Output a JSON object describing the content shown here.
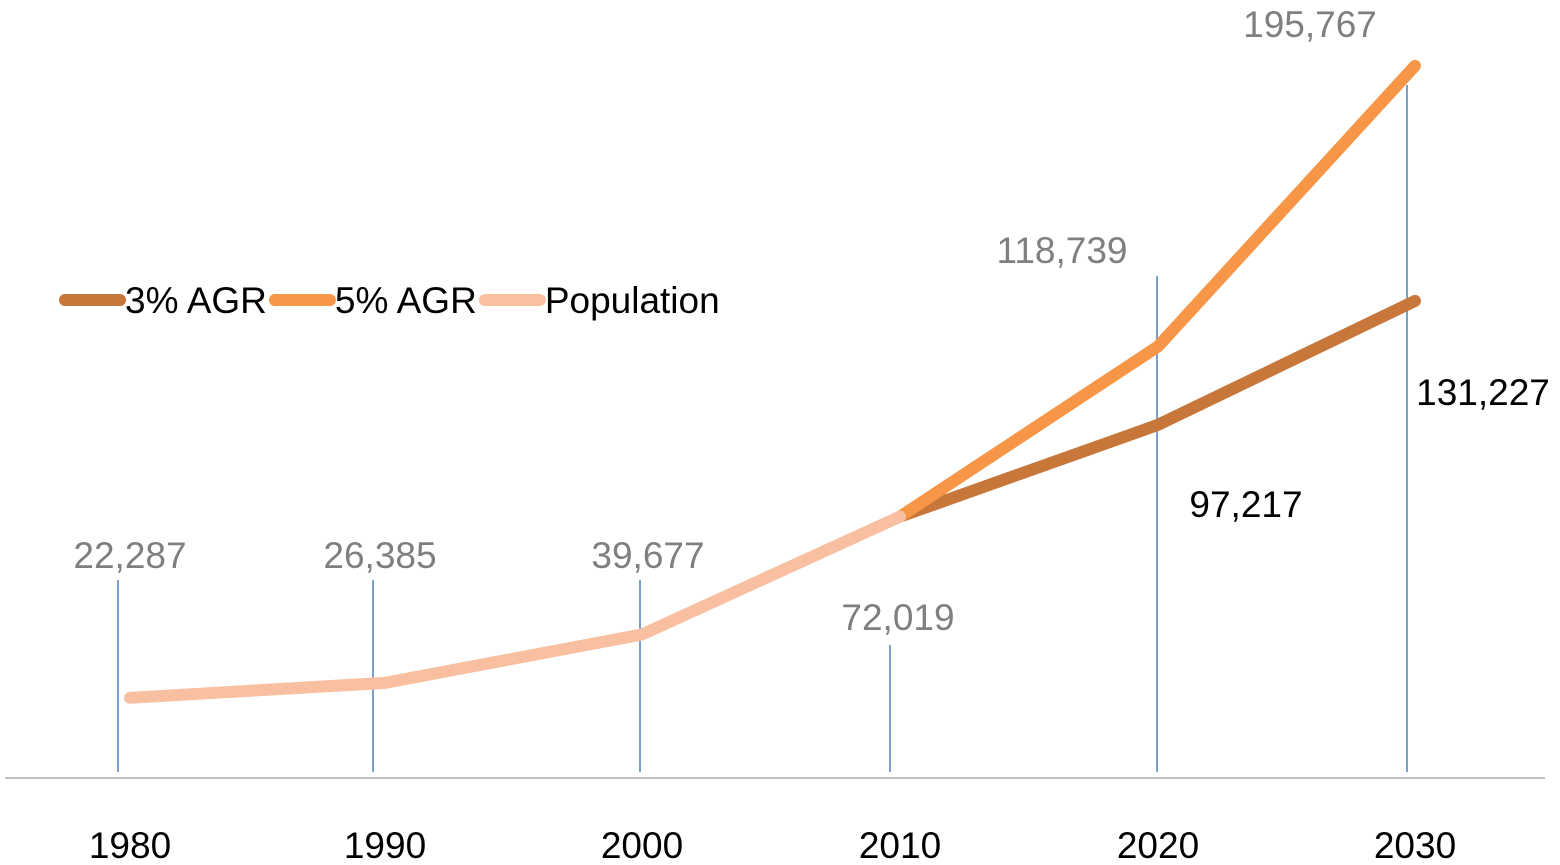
{
  "chart_data": {
    "type": "line",
    "categories": [
      "1980",
      "1990",
      "2000",
      "2010",
      "2020",
      "2030"
    ],
    "ylim": [
      0,
      200000
    ],
    "legend": "left",
    "series": [
      {
        "name": "3% AGR",
        "color": "#c8773a",
        "label_color": "#000000",
        "values": [
          null,
          null,
          null,
          72019,
          97217,
          131227
        ],
        "value_labels": [
          null,
          null,
          null,
          null,
          "97,217",
          "131,227"
        ]
      },
      {
        "name": "5% AGR",
        "color": "#f79646",
        "label_color": "#7f7f7f",
        "values": [
          null,
          null,
          null,
          72019,
          118739,
          195767
        ],
        "value_labels": [
          null,
          null,
          null,
          null,
          "118,739",
          "195,767"
        ]
      },
      {
        "name": "Population",
        "color": "#f8bfa0",
        "label_color": "#7f7f7f",
        "values": [
          22287,
          26385,
          39677,
          72019,
          null,
          null
        ],
        "value_labels": [
          "22,287",
          "26,385",
          "39,677",
          "72,019",
          null,
          null
        ]
      }
    ]
  }
}
